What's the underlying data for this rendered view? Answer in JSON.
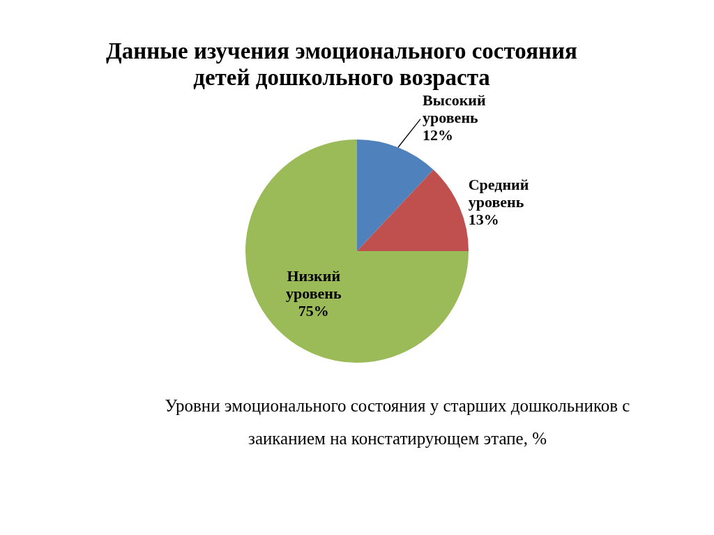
{
  "chart_data": {
    "type": "pie",
    "title": "Данные изучения эмоционального состояния детей дошкольного возраста",
    "categories": [
      "Высокий уровень",
      "Средний уровень",
      "Низкий уровень"
    ],
    "values": [
      12,
      13,
      75
    ],
    "colors": [
      "#4f81bd",
      "#c0504d",
      "#9bbb59"
    ],
    "value_labels": [
      "12%",
      "13%",
      "75%"
    ],
    "annotations": [
      "Уровни эмоционального состояния у старших дошкольников с заиканием на констатирующем этапе, %"
    ]
  }
}
